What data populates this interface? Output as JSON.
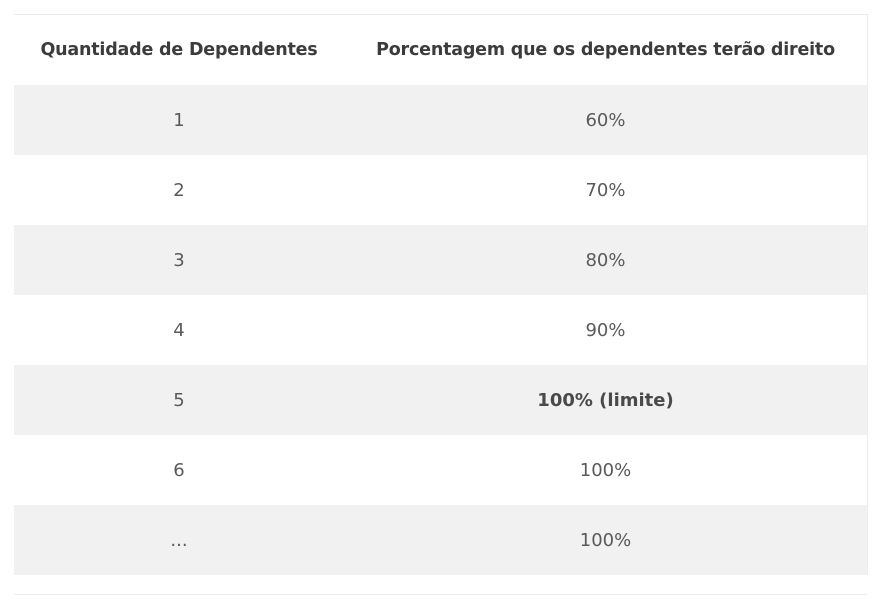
{
  "table": {
    "headers": [
      "Quantidade de Dependentes",
      "Porcentagem que os dependentes terão direito"
    ],
    "rows": [
      {
        "dependents": "1",
        "percentage": "60%"
      },
      {
        "dependents": "2",
        "percentage": "70%"
      },
      {
        "dependents": "3",
        "percentage": "80%"
      },
      {
        "dependents": "4",
        "percentage": "90%"
      },
      {
        "dependents": "5",
        "percentage": "100% (limite)"
      },
      {
        "dependents": "6",
        "percentage": "100%"
      },
      {
        "dependents": "...",
        "percentage": "100%"
      }
    ]
  }
}
